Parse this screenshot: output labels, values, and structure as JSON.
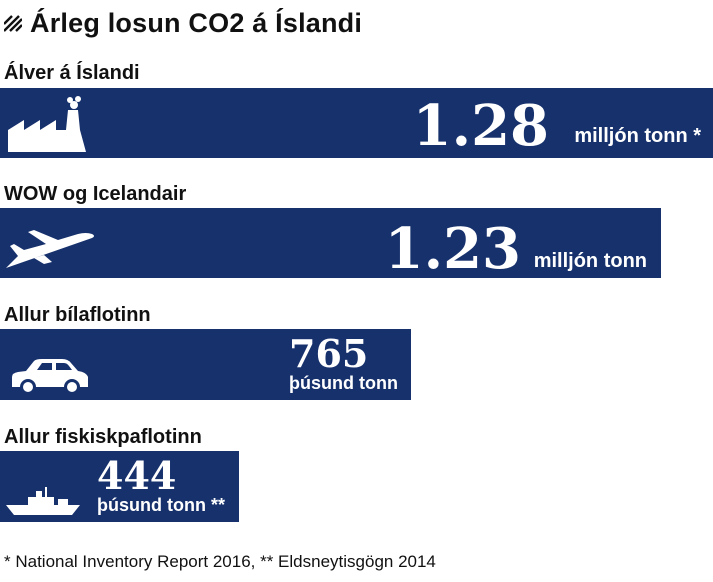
{
  "chart_data": {
    "type": "bar",
    "title": "Árleg losun CO2 á Íslandi",
    "categories": [
      "Álver á Íslandi",
      "WOW og Icelandair",
      "Allur bílaflotinn",
      "Allur fiskiskpaflotinn"
    ],
    "values": [
      1280,
      1230,
      765,
      444
    ],
    "value_unit": "þúsund tonn",
    "bars": [
      {
        "label": "Álver á Íslandi",
        "value_text": "1.28",
        "unit_text": "milljón tonn *",
        "icon": "factory-icon"
      },
      {
        "label": "WOW og Icelandair",
        "value_text": "1.23",
        "unit_text": "milljón tonn",
        "icon": "airplane-icon"
      },
      {
        "label": "Allur bílaflotinn",
        "value_text": "765",
        "unit_text": "þúsund tonn",
        "icon": "car-icon"
      },
      {
        "label": "Allur fiskiskpaflotinn",
        "value_text": "444",
        "unit_text": "þúsund tonn **",
        "icon": "ship-icon"
      }
    ],
    "bar_color": "#17316d",
    "text_on_bar_color": "#ffffff"
  },
  "footnote": "* National Inventory Report 2016, ** Eldsneytisgögn 2014"
}
